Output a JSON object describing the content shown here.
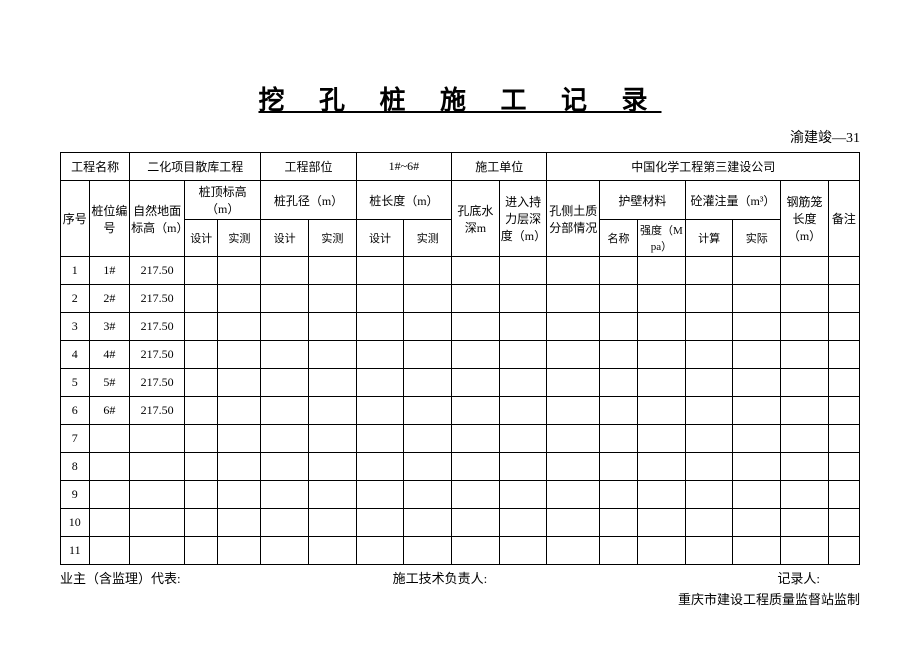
{
  "title": "挖 孔 桩 施 工 记 录",
  "docCode": "渝建竣—31",
  "header1": {
    "projectNameLabel": "工程名称",
    "projectName": "二化项目散库工程",
    "projectPartLabel": "工程部位",
    "projectPart": "1#~6#",
    "constructUnitLabel": "施工单位",
    "constructUnit": "中国化学工程第三建设公司"
  },
  "cols": {
    "seq": "序号",
    "pileNo": "桩位编号",
    "groundElev": "自然地面标高（m）",
    "pileTopElev": "桩顶标高（m）",
    "pileDia": "桩孔径（m）",
    "pileLen": "桩长度（m）",
    "waterDepth": "孔底水深m",
    "bearingDepth": "进入持力层深度（m）",
    "sideSoil": "孔侧土质分部情况",
    "wallMat": "护壁材料",
    "concVol": "砼灌注量（m³）",
    "cageLen": "钢筋笼长度（m）",
    "remark": "备注",
    "design": "设计",
    "measured": "实测",
    "name": "名称",
    "strength": "强度（Mpa）",
    "calc": "计算",
    "actual": "实际"
  },
  "rows": [
    {
      "seq": "1",
      "pile": "1#",
      "elev": "217.50"
    },
    {
      "seq": "2",
      "pile": "2#",
      "elev": "217.50"
    },
    {
      "seq": "3",
      "pile": "3#",
      "elev": "217.50"
    },
    {
      "seq": "4",
      "pile": "4#",
      "elev": "217.50"
    },
    {
      "seq": "5",
      "pile": "5#",
      "elev": "217.50"
    },
    {
      "seq": "6",
      "pile": "6#",
      "elev": "217.50"
    },
    {
      "seq": "7",
      "pile": "",
      "elev": ""
    },
    {
      "seq": "8",
      "pile": "",
      "elev": ""
    },
    {
      "seq": "9",
      "pile": "",
      "elev": ""
    },
    {
      "seq": "10",
      "pile": "",
      "elev": ""
    },
    {
      "seq": "11",
      "pile": "",
      "elev": ""
    }
  ],
  "footer": {
    "owner": "业主（含监理）代表:",
    "tech": "施工技术负责人:",
    "recorder": "记录人:",
    "org": "重庆市建设工程质量监督站监制"
  }
}
